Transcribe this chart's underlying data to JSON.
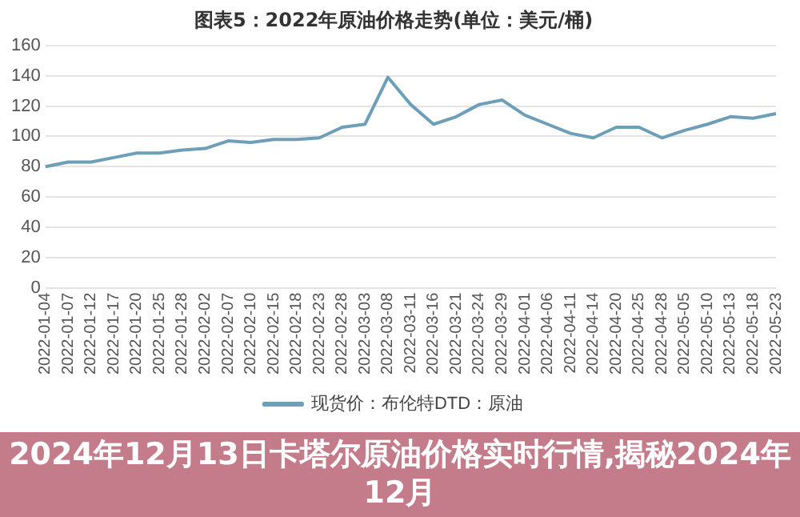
{
  "chart_data": {
    "type": "line",
    "title": "图表5：2022年原油价格走势(单位：美元/桶)",
    "categories": [
      "2022-01-04",
      "2022-01-07",
      "2022-01-12",
      "2022-01-17",
      "2022-01-20",
      "2022-01-25",
      "2022-01-28",
      "2022-02-02",
      "2022-02-07",
      "2022-02-10",
      "2022-02-15",
      "2022-02-18",
      "2022-02-23",
      "2022-02-28",
      "2022-03-03",
      "2022-03-08",
      "2022-03-11",
      "2022-03-16",
      "2022-03-21",
      "2022-03-24",
      "2022-03-29",
      "2022-04-01",
      "2022-04-06",
      "2022-04-11",
      "2022-04-14",
      "2022-04-20",
      "2022-04-25",
      "2022-04-28",
      "2022-05-05",
      "2022-05-10",
      "2022-05-13",
      "2022-05-18",
      "2022-05-23"
    ],
    "series": [
      {
        "name": "现货价：布伦特DTD：原油",
        "color": "#6e9fb8",
        "values": [
          80,
          83,
          83,
          86,
          89,
          89,
          91,
          92,
          97,
          96,
          98,
          98,
          99,
          106,
          108,
          139,
          121,
          108,
          113,
          121,
          124,
          114,
          108,
          102,
          99,
          106,
          106,
          99,
          104,
          108,
          113,
          112,
          115
        ]
      }
    ],
    "ylim": [
      0,
      160
    ],
    "yticks": [
      0,
      20,
      40,
      60,
      80,
      100,
      120,
      140,
      160
    ],
    "grid": "y",
    "legend": "bottom",
    "marker": "none",
    "line_style": "solid",
    "annotations": [
      "2024年12月13日卡塔尔原油价格实时行情,揭秘2024年12月"
    ]
  }
}
